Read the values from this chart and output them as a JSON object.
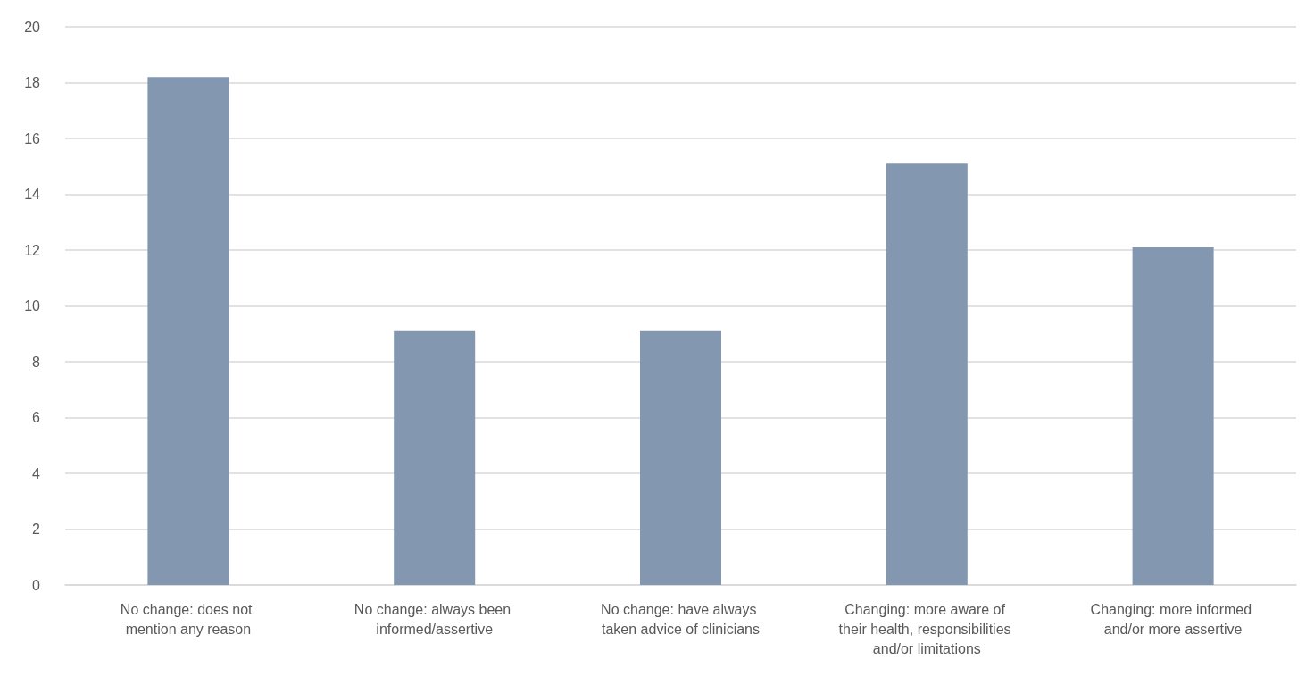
{
  "chart_data": {
    "type": "bar",
    "categories": [
      "No change: does not mention any reason",
      "No change: always been informed/assertive",
      "No change: have always taken advice of clinicians",
      "Changing: more aware of their health, responsibilities and/or limitations",
      "Changing: more informed and/or more assertive"
    ],
    "values": [
      18.2,
      9.1,
      9.1,
      15.1,
      12.1
    ],
    "color": "#8497b0",
    "ylim": [
      0,
      20
    ],
    "yticks": [
      0,
      2,
      4,
      6,
      8,
      10,
      12,
      14,
      16,
      18,
      20
    ],
    "grid": "y"
  }
}
